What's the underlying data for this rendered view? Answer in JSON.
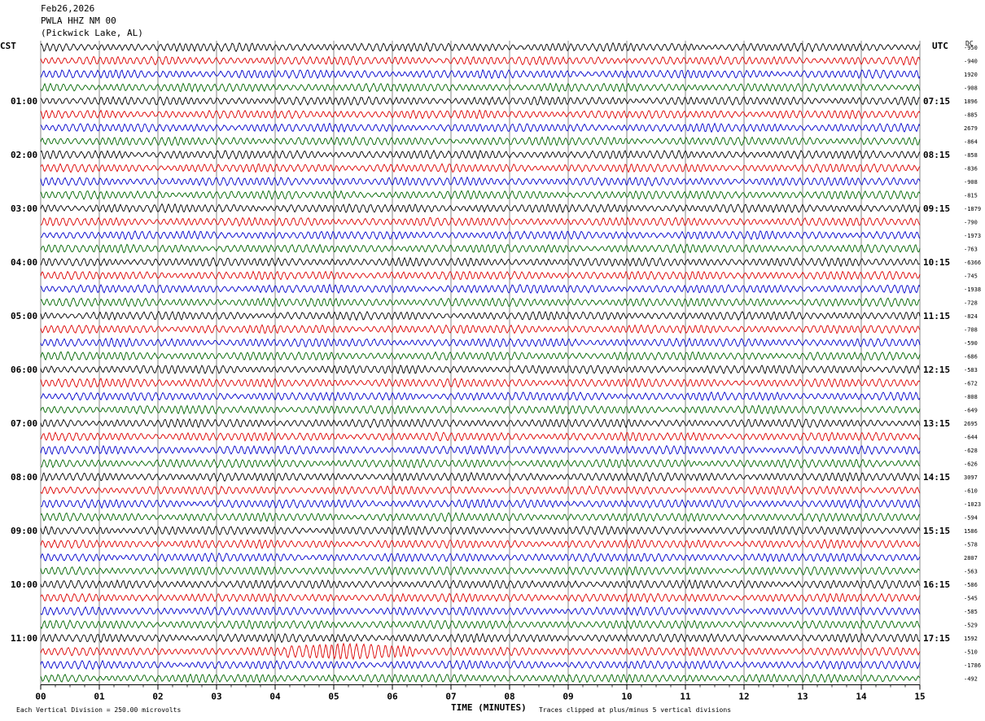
{
  "header": {
    "date": "Feb26,2026",
    "channel": "PWLA HHZ NM 00",
    "location": "(Pickwick Lake, AL)"
  },
  "labels": {
    "left_tz": "CST",
    "right_tz": "UTC",
    "dc": "DC",
    "xlabel": "TIME (MINUTES)",
    "scale_note": "Each Vertical Division =  250.00 microvolts",
    "clip_note": "Traces clipped at plus/minus 5 vertical divisions"
  },
  "chart_data": {
    "type": "line",
    "title": "PWLA HHZ NM 00 (Pickwick Lake, AL) Feb26,2026",
    "xlabel": "TIME (MINUTES)",
    "xlim": [
      0,
      15
    ],
    "x_ticks": [
      "00",
      "01",
      "02",
      "03",
      "04",
      "05",
      "06",
      "07",
      "08",
      "09",
      "10",
      "11",
      "12",
      "13",
      "14",
      "15"
    ],
    "left_time_labels": [
      "01:00",
      "02:00",
      "03:00",
      "04:00",
      "05:00",
      "06:00",
      "07:00",
      "08:00",
      "09:00",
      "10:00",
      "11:00"
    ],
    "right_time_labels": [
      "07:15",
      "08:15",
      "09:15",
      "10:15",
      "11:15",
      "12:15",
      "13:15",
      "14:15",
      "15:15",
      "16:15",
      "17:15"
    ],
    "trace_colors": [
      "#000000",
      "#dd0000",
      "#0000cc",
      "#006600"
    ],
    "dc_offsets": [
      "-950",
      "-940",
      "1920",
      "-908",
      "1896",
      "-885",
      "2679",
      "-864",
      "-858",
      "-836",
      "-908",
      "-815",
      "-1879",
      "-790",
      "-1973",
      "-763",
      "-6366",
      "-745",
      "-1938",
      "-728",
      "-824",
      "-708",
      "-590",
      "-686",
      "-583",
      "-672",
      "-808",
      "-649",
      "2695",
      "-644",
      "-628",
      "-626",
      "3097",
      "-610",
      "-1023",
      "-594",
      "1586",
      "-578",
      "2807",
      "-563",
      "-586",
      "-545",
      "-585",
      "-529",
      "1592",
      "-510",
      "-1786",
      "-492"
    ],
    "trace_count": 48,
    "grid": true,
    "scale_microvolts_per_division": 250.0,
    "clip_divisions": 5
  }
}
